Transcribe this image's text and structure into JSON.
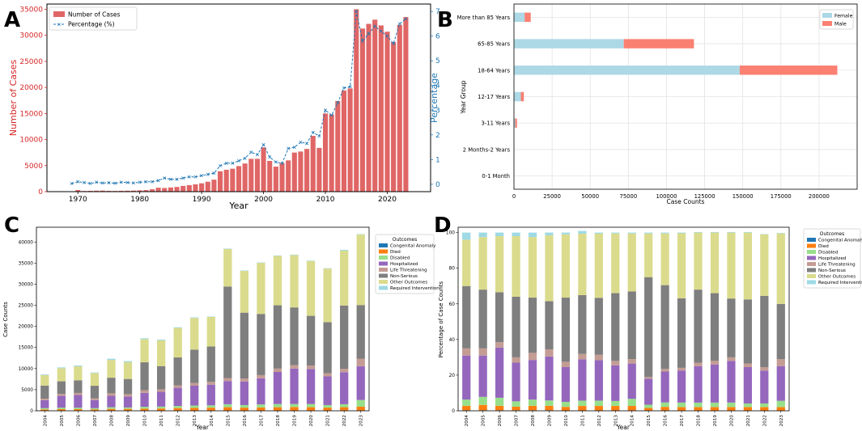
{
  "panel_letters": {
    "a": "A",
    "b": "B",
    "c": "C",
    "d": "D"
  },
  "chart_data": [
    {
      "id": "A",
      "type": "bar+line",
      "title": "",
      "xlabel": "Year",
      "ylabel_left": "Number of Cases",
      "ylabel_right": "Percentage",
      "xlim": [
        1965,
        2027
      ],
      "ylim_left": [
        0,
        36000
      ],
      "ylim_right": [
        -0.3,
        7.3
      ],
      "x_ticks": [
        1970,
        1980,
        1990,
        2000,
        2010,
        2020
      ],
      "yleft_ticks": [
        0,
        5000,
        10000,
        15000,
        20000,
        25000,
        30000,
        35000
      ],
      "yright_ticks": [
        0,
        1,
        2,
        3,
        4,
        5,
        6,
        7
      ],
      "legend": [
        "Number of Cases",
        "Percentage (%)"
      ],
      "bar_color": "#e06666",
      "line_color": "#1f77b4",
      "years": [
        1969,
        1970,
        1971,
        1972,
        1973,
        1974,
        1975,
        1976,
        1977,
        1978,
        1979,
        1980,
        1981,
        1982,
        1983,
        1984,
        1985,
        1986,
        1987,
        1988,
        1989,
        1990,
        1991,
        1992,
        1993,
        1994,
        1995,
        1996,
        1997,
        1998,
        1999,
        2000,
        2001,
        2002,
        2003,
        2004,
        2005,
        2006,
        2007,
        2008,
        2009,
        2010,
        2011,
        2012,
        2013,
        2014,
        2015,
        2016,
        2017,
        2018,
        2019,
        2020,
        2021,
        2022,
        2023
      ],
      "cases": [
        50,
        300,
        120,
        150,
        180,
        200,
        150,
        130,
        160,
        180,
        200,
        250,
        300,
        450,
        750,
        700,
        800,
        900,
        1100,
        1250,
        1400,
        1600,
        1900,
        2300,
        3900,
        4200,
        4400,
        4900,
        5400,
        6300,
        6300,
        8500,
        5900,
        4800,
        5500,
        6000,
        7500,
        7700,
        8200,
        10700,
        8400,
        15000,
        14800,
        17400,
        19400,
        19800,
        35000,
        31300,
        32200,
        33000,
        31900,
        30700,
        28700,
        32000,
        33500
      ],
      "percentage": [
        0.03,
        0.1,
        0.07,
        0.03,
        0.08,
        0.05,
        0.06,
        0.04,
        0.08,
        0.07,
        0.05,
        0.08,
        0.1,
        0.1,
        0.15,
        0.25,
        0.2,
        0.2,
        0.25,
        0.3,
        0.3,
        0.35,
        0.4,
        0.45,
        0.75,
        0.85,
        0.85,
        0.95,
        1.05,
        1.3,
        1.2,
        1.6,
        1.1,
        0.9,
        0.85,
        1.45,
        1.5,
        1.7,
        1.65,
        2.1,
        1.95,
        3.0,
        2.8,
        3.3,
        3.9,
        3.95,
        7.0,
        5.8,
        6.1,
        6.4,
        6.2,
        6.0,
        5.7,
        6.5,
        6.7
      ]
    },
    {
      "id": "B",
      "type": "bar-horizontal-stacked",
      "title": "",
      "xlabel": "Case Counts",
      "ylabel": "Year Group",
      "xlim": [
        0,
        225000
      ],
      "x_ticks": [
        0,
        25000,
        50000,
        75000,
        100000,
        125000,
        150000,
        175000,
        200000
      ],
      "categories": [
        "0-1 Month",
        "2 Months-2 Years",
        "3-11 Years",
        "12-17 Years",
        "18-64 Years",
        "65-85 Years",
        "More than 85 Years"
      ],
      "series": [
        {
          "name": "Female",
          "color": "#add8e6",
          "values": [
            0,
            100,
            800,
            4500,
            148000,
            72000,
            7000
          ]
        },
        {
          "name": "Male",
          "color": "#fa8072",
          "values": [
            0,
            100,
            1200,
            2000,
            64000,
            46000,
            4000
          ]
        }
      ],
      "legend": [
        "Female",
        "Male"
      ]
    },
    {
      "id": "C",
      "type": "bar-stacked",
      "title": "",
      "xlabel": "Year",
      "ylabel": "Case Counts",
      "ylim": [
        0,
        43500
      ],
      "y_ticks": [
        0,
        5000,
        10000,
        15000,
        20000,
        25000,
        30000,
        35000,
        40000
      ],
      "categories": [
        "2004",
        "2005",
        "2006",
        "2007",
        "2008",
        "2009",
        "2010",
        "2011",
        "2012",
        "2013",
        "2014",
        "2015",
        "2016",
        "2017",
        "2018",
        "2019",
        "2020",
        "2021",
        "2022",
        "2023"
      ],
      "legend_title": "Outcomes",
      "series": [
        {
          "name": "Congenital Anomaly",
          "color": "#1f77b4",
          "values": [
            30,
            30,
            30,
            30,
            40,
            40,
            40,
            40,
            40,
            40,
            40,
            50,
            50,
            50,
            50,
            50,
            50,
            50,
            50,
            60
          ]
        },
        {
          "name": "Died",
          "color": "#ff7f0e",
          "values": [
            300,
            350,
            350,
            300,
            400,
            400,
            450,
            500,
            600,
            650,
            700,
            800,
            700,
            750,
            800,
            850,
            800,
            700,
            800,
            900
          ]
        },
        {
          "name": "Disabled",
          "color": "#98df8a",
          "values": [
            300,
            350,
            350,
            300,
            400,
            350,
            450,
            450,
            500,
            550,
            550,
            700,
            600,
            700,
            750,
            700,
            750,
            600,
            700,
            1600
          ]
        },
        {
          "name": "Hospitalized",
          "color": "#9467bd",
          "values": [
            1900,
            2800,
            3000,
            1900,
            2700,
            2600,
            3300,
            3500,
            4300,
            4700,
            4900,
            5500,
            5600,
            6200,
            7600,
            8400,
            8300,
            6800,
            7600,
            8000
          ]
        },
        {
          "name": "Life Threatening",
          "color": "#c49c94",
          "values": [
            350,
            450,
            500,
            400,
            600,
            550,
            650,
            600,
            600,
            650,
            650,
            700,
            700,
            750,
            800,
            800,
            800,
            750,
            800,
            1800
          ]
        },
        {
          "name": "Non-Serious",
          "color": "#7f7f7f",
          "values": [
            3100,
            3000,
            3000,
            3000,
            3700,
            3600,
            6600,
            5500,
            6600,
            7900,
            8400,
            21700,
            15600,
            14500,
            15000,
            13700,
            11800,
            12100,
            15000,
            12700
          ]
        },
        {
          "name": "Other Outcomes",
          "color": "#dbdb8d",
          "values": [
            2500,
            3100,
            3300,
            3000,
            4200,
            4000,
            5500,
            6100,
            7000,
            7500,
            7000,
            8900,
            9900,
            12100,
            11700,
            12400,
            13000,
            12700,
            13000,
            16700
          ]
        },
        {
          "name": "Required Intervention",
          "color": "#9edae5",
          "values": [
            150,
            200,
            200,
            150,
            300,
            250,
            200,
            200,
            150,
            150,
            100,
            100,
            100,
            100,
            100,
            100,
            100,
            100,
            200,
            100
          ]
        }
      ]
    },
    {
      "id": "D",
      "type": "bar-stacked-percent",
      "title": "",
      "xlabel": "Year",
      "ylabel": "Percentage of Case Counts",
      "ylim": [
        0,
        103
      ],
      "y_ticks": [
        0,
        20,
        40,
        60,
        80,
        100
      ],
      "categories": [
        "2004",
        "2005",
        "2006",
        "2007",
        "2008",
        "2009",
        "2010",
        "2011",
        "2012",
        "2013",
        "2014",
        "2015",
        "2016",
        "2017",
        "2018",
        "2019",
        "2020",
        "2021",
        "2022",
        "2023"
      ],
      "legend_title": "Outcomes",
      "series": [
        {
          "name": "Congenital Anomaly",
          "color": "#1f77b4",
          "values": [
            0.3,
            0.3,
            0.3,
            0.3,
            0.3,
            0.3,
            0.2,
            0.2,
            0.2,
            0.2,
            0.2,
            0.1,
            0.2,
            0.1,
            0.1,
            0.1,
            0.1,
            0.1,
            0.1,
            0.1
          ]
        },
        {
          "name": "Died",
          "color": "#ff7f0e",
          "values": [
            2.5,
            3,
            2.5,
            2,
            2.5,
            2.5,
            2,
            2.5,
            2.5,
            2.5,
            2.5,
            1.5,
            2,
            2,
            2,
            2,
            2,
            2,
            2,
            2
          ]
        },
        {
          "name": "Disabled",
          "color": "#98df8a",
          "values": [
            3.5,
            4.5,
            4.5,
            3,
            3.5,
            3,
            2.8,
            3,
            3,
            2.8,
            4,
            1.8,
            2.5,
            2.5,
            2.5,
            2.5,
            2.5,
            2,
            2,
            3.5
          ]
        },
        {
          "name": "Hospitalized",
          "color": "#9467bd",
          "values": [
            24.7,
            23.2,
            28.2,
            21.7,
            22.2,
            24.7,
            19.5,
            23.2,
            22.7,
            20,
            19.8,
            14.6,
            17.3,
            18,
            20.4,
            21.4,
            23.4,
            20.4,
            18.4,
            19.4
          ]
        },
        {
          "name": "Life Threatening",
          "color": "#c49c94",
          "values": [
            4,
            4,
            3,
            3,
            4,
            4,
            3,
            3,
            3,
            2.5,
            2.5,
            1,
            1.5,
            1.5,
            2,
            2,
            2,
            2,
            2,
            4
          ]
        },
        {
          "name": "Non-Serious",
          "color": "#7f7f7f",
          "values": [
            35,
            33,
            28,
            34,
            31,
            27,
            36,
            33,
            32,
            38,
            38,
            56,
            47,
            39,
            41,
            38,
            33,
            36,
            40,
            31
          ]
        },
        {
          "name": "Other Outcomes",
          "color": "#dbdb8d",
          "values": [
            26,
            29.5,
            31.5,
            34,
            34,
            37,
            35.5,
            34.5,
            36,
            33.5,
            32.5,
            24.5,
            29,
            36.5,
            32,
            34,
            37,
            37.5,
            34.5,
            39.5
          ]
        },
        {
          "name": "Required Intervention",
          "color": "#9edae5",
          "values": [
            4,
            2.5,
            2,
            2,
            2.5,
            1.5,
            1,
            1.5,
            0.6,
            0.5,
            0.5,
            0.5,
            0.5,
            0.4,
            0.3,
            0.3,
            0.3,
            0.3,
            0.2,
            0.3
          ]
        }
      ]
    }
  ]
}
